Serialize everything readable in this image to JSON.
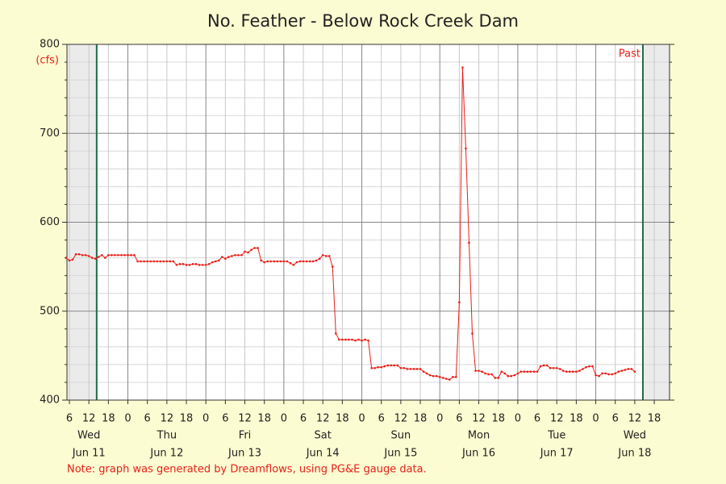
{
  "chart_data": {
    "type": "line",
    "title": "No. Feather - Below Rock Creek Dam",
    "y_unit": "(cfs)",
    "past_label": "Past",
    "note": "Note: graph was generated by Dreamflows, using PG&E gauge data.",
    "xlim": [
      5.25,
      190.7
    ],
    "ylim": [
      400,
      800
    ],
    "yticks": [
      400,
      500,
      600,
      700,
      800
    ],
    "yminor_ticks": [
      420,
      440,
      460,
      480,
      520,
      540,
      560,
      580,
      620,
      640,
      660,
      680,
      720,
      740,
      760,
      780
    ],
    "xticks": [
      6,
      12,
      18,
      {
        "value": 24,
        "label": "0"
      },
      {
        "value": 30,
        "label": "6"
      },
      {
        "value": 36,
        "label": "12"
      },
      {
        "value": 42,
        "label": "18"
      },
      {
        "value": 48,
        "label": "0"
      },
      {
        "value": 54,
        "label": "6"
      },
      {
        "value": 60,
        "label": "12"
      },
      {
        "value": 66,
        "label": "18"
      },
      {
        "value": 72,
        "label": "0"
      },
      {
        "value": 78,
        "label": "6"
      },
      {
        "value": 84,
        "label": "12"
      },
      {
        "value": 90,
        "label": "18"
      },
      {
        "value": 96,
        "label": "0"
      },
      {
        "value": 102,
        "label": "6"
      },
      {
        "value": 108,
        "label": "12"
      },
      {
        "value": 114,
        "label": "18"
      },
      {
        "value": 120,
        "label": "0"
      },
      {
        "value": 126,
        "label": "6"
      },
      {
        "value": 132,
        "label": "12"
      },
      {
        "value": 138,
        "label": "18"
      },
      {
        "value": 144,
        "label": "0"
      },
      {
        "value": 150,
        "label": "6"
      },
      {
        "value": 156,
        "label": "12"
      },
      {
        "value": 162,
        "label": "18"
      },
      {
        "value": 168,
        "label": "0"
      },
      {
        "value": 174,
        "label": "6"
      },
      {
        "value": 180,
        "label": "12"
      },
      {
        "value": 186,
        "label": "18"
      }
    ],
    "day_labels": [
      {
        "value": 12,
        "day": "Wed",
        "date": "Jun 11"
      },
      {
        "value": 36,
        "day": "Thu",
        "date": "Jun 12"
      },
      {
        "value": 60,
        "day": "Fri",
        "date": "Jun 13"
      },
      {
        "value": 84,
        "day": "Sat",
        "date": "Jun 14"
      },
      {
        "value": 108,
        "day": "Sun",
        "date": "Jun 15"
      },
      {
        "value": 132,
        "day": "Mon",
        "date": "Jun 16"
      },
      {
        "value": 156,
        "day": "Tue",
        "date": "Jun 17"
      },
      {
        "value": 180,
        "day": "Wed",
        "date": "Jun 18"
      }
    ],
    "window": [
      14.4,
      182.5
    ],
    "grid": true,
    "color": "#e8201a",
    "window_color": "#1f6b4a",
    "x": [
      5,
      6,
      7,
      8,
      9,
      10,
      11,
      12,
      13,
      14,
      15,
      16,
      17,
      18,
      19,
      20,
      21,
      22,
      23,
      24,
      25,
      26,
      27,
      28,
      29,
      30,
      31,
      32,
      33,
      34,
      35,
      36,
      37,
      38,
      39,
      40,
      41,
      42,
      43,
      44,
      45,
      46,
      47,
      48,
      49,
      50,
      51,
      52,
      53,
      54,
      55,
      56,
      57,
      58,
      59,
      60,
      61,
      62,
      63,
      64,
      65,
      66,
      67,
      68,
      69,
      70,
      71,
      72,
      73,
      74,
      75,
      76,
      77,
      78,
      79,
      80,
      81,
      82,
      83,
      84,
      85,
      86,
      87,
      88,
      89,
      90,
      91,
      92,
      93,
      94,
      95,
      96,
      97,
      98,
      99,
      100,
      101,
      102,
      103,
      104,
      105,
      106,
      107,
      108,
      109,
      110,
      111,
      112,
      113,
      114,
      115,
      116,
      117,
      118,
      119,
      120,
      121,
      122,
      123,
      124,
      125,
      126,
      127,
      128,
      129,
      130,
      131,
      132,
      133,
      134,
      135,
      136,
      137,
      138,
      139,
      140,
      141,
      142,
      143,
      144,
      145,
      146,
      147,
      148,
      149,
      150,
      151,
      152,
      153,
      154,
      155,
      156,
      157,
      158,
      159,
      160,
      161,
      162,
      163,
      164,
      165,
      166,
      167,
      168,
      169,
      170,
      171,
      172,
      173,
      174,
      175,
      176,
      177,
      178,
      179,
      180
    ],
    "values": [
      560,
      557,
      558,
      564,
      564,
      563,
      563,
      562,
      560,
      559,
      561,
      563,
      560,
      563,
      563,
      563,
      563,
      563,
      563,
      563,
      563,
      563,
      556,
      556,
      556,
      556,
      556,
      556,
      556,
      556,
      556,
      556,
      556,
      556,
      552,
      553,
      553,
      552,
      552,
      553,
      553,
      552,
      552,
      552,
      553,
      555,
      556,
      557,
      561,
      559,
      561,
      562,
      563,
      563,
      563,
      567,
      566,
      569,
      571,
      571,
      557,
      555,
      556,
      556,
      556,
      556,
      556,
      556,
      556,
      554,
      552,
      555,
      556,
      556,
      556,
      556,
      556,
      557,
      559,
      563,
      562,
      562,
      550,
      475,
      468,
      468,
      468,
      468,
      468,
      467,
      468,
      467,
      468,
      467,
      436,
      436,
      437,
      437,
      438,
      439,
      439,
      439,
      439,
      436,
      436,
      435,
      435,
      435,
      435,
      435,
      432,
      430,
      428,
      427,
      427,
      426,
      425,
      424,
      423,
      426,
      426,
      510,
      774,
      683,
      577,
      475,
      433,
      433,
      432,
      430,
      429,
      429,
      425,
      425,
      432,
      430,
      427,
      427,
      428,
      430,
      432,
      432,
      432,
      432,
      432,
      432,
      438,
      439,
      439,
      436,
      436,
      436,
      435,
      433,
      432,
      432,
      432,
      432,
      433,
      435,
      437,
      438,
      438,
      428,
      427,
      430,
      430,
      429,
      429,
      430,
      432,
      433,
      434,
      435,
      435,
      432
    ]
  }
}
